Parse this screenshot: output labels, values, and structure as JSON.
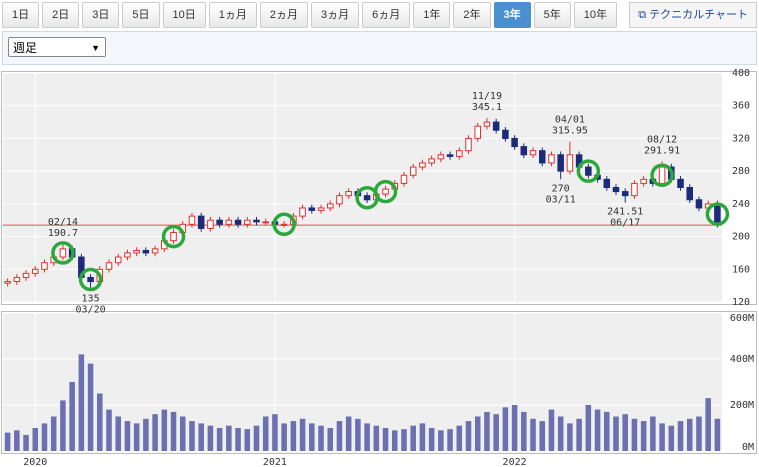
{
  "ui": {
    "tabs": [
      "1日",
      "2日",
      "3日",
      "5日",
      "10日",
      "1ヵ月",
      "2ヵ月",
      "3ヵ月",
      "6ヵ月",
      "1年",
      "2年",
      "3年",
      "5年",
      "10年"
    ],
    "active_tab": 11,
    "technical_link": "テクニカルチャート",
    "period_select": "週足"
  },
  "chart_data": {
    "type": "candlestick",
    "categories": [
      null,
      null,
      null,
      "2020",
      null,
      null,
      null,
      null,
      null,
      null,
      null,
      null,
      null,
      null,
      null,
      null,
      null,
      null,
      null,
      null,
      null,
      null,
      null,
      null,
      null,
      null,
      null,
      null,
      null,
      "2021",
      null,
      null,
      null,
      null,
      null,
      null,
      null,
      null,
      null,
      null,
      null,
      null,
      null,
      null,
      null,
      null,
      null,
      null,
      null,
      null,
      null,
      null,
      null,
      null,
      null,
      "2022",
      null,
      null,
      null,
      null,
      null,
      null,
      null,
      null,
      null,
      null,
      null,
      null,
      null,
      null,
      null,
      null,
      null,
      null,
      null,
      null,
      null,
      null
    ],
    "open": [
      143,
      145,
      150,
      155,
      160,
      168,
      175,
      185,
      175,
      150,
      145,
      160,
      168,
      175,
      180,
      183,
      180,
      185,
      195,
      205,
      215,
      225,
      210,
      220,
      215,
      220,
      215,
      220,
      218,
      218,
      215,
      215,
      225,
      235,
      232,
      235,
      240,
      250,
      255,
      250,
      245,
      252,
      258,
      265,
      275,
      285,
      290,
      295,
      300,
      298,
      305,
      320,
      335,
      340,
      330,
      320,
      310,
      300,
      305,
      290,
      300,
      280,
      300,
      285,
      275,
      270,
      260,
      255,
      250,
      265,
      270,
      265,
      285,
      270,
      260,
      245,
      235,
      240
    ],
    "high": [
      149,
      154,
      159,
      164,
      172,
      179,
      190.7,
      189,
      179,
      154,
      164,
      172,
      179,
      184,
      187,
      187,
      189,
      199,
      209,
      219,
      229,
      229,
      224,
      224,
      224,
      224,
      224,
      224,
      222,
      222,
      219,
      229,
      239,
      239,
      239,
      244,
      254,
      259,
      259,
      254,
      256,
      262,
      269,
      279,
      289,
      294,
      299,
      304,
      304,
      309,
      324,
      339,
      345.1,
      344,
      334,
      324,
      314,
      309,
      309,
      304,
      304,
      315.95,
      304,
      289,
      279,
      274,
      264,
      259,
      269,
      274,
      274,
      291.91,
      289,
      274,
      264,
      249,
      244,
      244
    ],
    "low": [
      139,
      141,
      146,
      151,
      156,
      164,
      171,
      171,
      146,
      135,
      141,
      156,
      164,
      171,
      176,
      176,
      176,
      181,
      191,
      201,
      211,
      206,
      206,
      211,
      211,
      211,
      211,
      214,
      214,
      211,
      211,
      211,
      221,
      228,
      228,
      231,
      236,
      246,
      246,
      241,
      241,
      248,
      254,
      261,
      271,
      281,
      286,
      291,
      294,
      294,
      301,
      316,
      331,
      326,
      316,
      306,
      296,
      296,
      286,
      286,
      270,
      276,
      281,
      271,
      266,
      256,
      251,
      241.51,
      246,
      261,
      261,
      261,
      266,
      256,
      241,
      231,
      231,
      211
    ],
    "close": [
      145,
      150,
      155,
      160,
      168,
      175,
      185,
      175,
      150,
      145,
      160,
      168,
      175,
      180,
      183,
      180,
      185,
      195,
      205,
      215,
      225,
      210,
      220,
      215,
      220,
      215,
      220,
      218,
      218,
      215,
      215,
      225,
      235,
      232,
      235,
      240,
      250,
      255,
      250,
      245,
      252,
      258,
      265,
      275,
      285,
      290,
      295,
      300,
      298,
      305,
      320,
      335,
      340,
      330,
      320,
      310,
      300,
      305,
      290,
      300,
      280,
      300,
      285,
      275,
      270,
      260,
      255,
      250,
      265,
      270,
      265,
      285,
      270,
      260,
      245,
      235,
      240,
      215
    ],
    "volume": [
      80,
      90,
      70,
      100,
      120,
      150,
      220,
      300,
      420,
      380,
      250,
      180,
      150,
      130,
      120,
      140,
      160,
      180,
      170,
      150,
      130,
      120,
      110,
      100,
      110,
      100,
      95,
      110,
      150,
      160,
      120,
      130,
      140,
      120,
      110,
      100,
      130,
      150,
      140,
      120,
      110,
      100,
      90,
      95,
      110,
      120,
      100,
      90,
      95,
      110,
      130,
      150,
      170,
      160,
      190,
      200,
      170,
      140,
      130,
      180,
      150,
      120,
      140,
      200,
      180,
      170,
      150,
      160,
      140,
      130,
      150,
      120,
      110,
      130,
      140,
      150,
      230,
      140
    ],
    "ylim": [
      120,
      400
    ],
    "yticks": [
      120,
      160,
      200,
      240,
      280,
      320,
      360,
      400
    ],
    "volume_ylim": [
      0,
      600
    ],
    "volume_yticks": [
      {
        "value": 0,
        "label": "0M"
      },
      {
        "value": 200,
        "label": "200M"
      },
      {
        "value": 400,
        "label": "400M"
      },
      {
        "value": 600,
        "label": "600M"
      }
    ],
    "reference_line": 214,
    "up_color": "#e03030",
    "down_color": "#1c2a7a",
    "volume_color": "#6a70b0",
    "reference_color": "#e05050",
    "annotations": [
      "02/14",
      "03/20",
      "11/19",
      "04/01",
      "03/11",
      "06/17",
      "08/12"
    ],
    "grid": true
  }
}
